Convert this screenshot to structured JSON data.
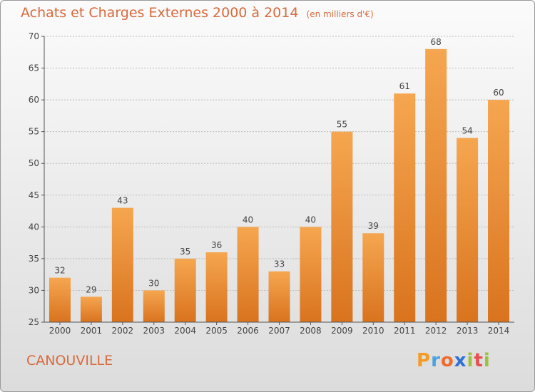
{
  "title": "Achats et Charges Externes 2000 à 2014",
  "unit_note": "(en milliers d'€)",
  "commune": "CANOUVILLE",
  "logo": {
    "text": "Proxiti",
    "icon": "proxiti-logo"
  },
  "colors": {
    "bar_light": "#f6a650",
    "bar_dark": "#d9731e",
    "title": "#d86a3c",
    "grid": "#bdbdbd"
  },
  "chart_data": {
    "type": "bar",
    "categories": [
      "2000",
      "2001",
      "2002",
      "2003",
      "2004",
      "2005",
      "2006",
      "2007",
      "2008",
      "2009",
      "2010",
      "2011",
      "2012",
      "2013",
      "2014"
    ],
    "values": [
      32,
      29,
      43,
      30,
      35,
      36,
      40,
      33,
      40,
      55,
      39,
      61,
      68,
      54,
      60
    ],
    "title": "Achats et Charges Externes 2000 à 2014",
    "xlabel": "",
    "ylabel": "",
    "ylim": [
      25,
      70
    ],
    "yticks": [
      25,
      30,
      35,
      40,
      45,
      50,
      55,
      60,
      65,
      70
    ],
    "grid": true,
    "data_labels": true
  }
}
